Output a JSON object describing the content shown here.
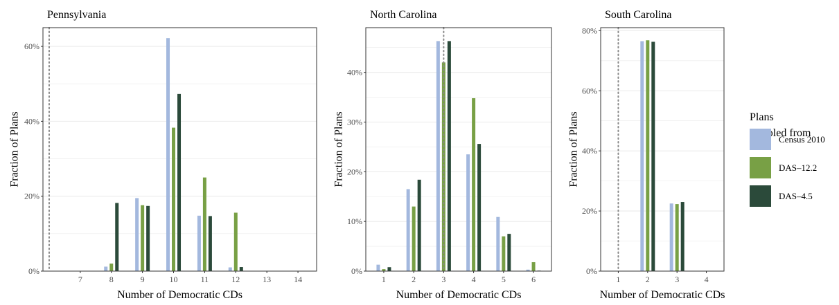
{
  "chart_data": [
    {
      "type": "bar",
      "title": "Pennsylvania",
      "xlabel": "Number of Democratic CDs",
      "ylabel": "Fraction of Plans",
      "categories": [
        "7",
        "8",
        "9",
        "10",
        "11",
        "12",
        "13",
        "14"
      ],
      "xlim": [
        5.8,
        14.6
      ],
      "ylim": [
        0,
        0.65
      ],
      "yticks": [
        0,
        0.2,
        0.4,
        0.6
      ],
      "ytick_labels": [
        "0%",
        "20%",
        "40%",
        "60%"
      ],
      "reference_line": 6,
      "series": [
        {
          "name": "Census 2010",
          "values": [
            0,
            0.012,
            0.195,
            0.622,
            0.148,
            0.01,
            0,
            0
          ]
        },
        {
          "name": "DAS–12.2",
          "values": [
            0,
            0.02,
            0.176,
            0.383,
            0.25,
            0.156,
            0,
            0
          ]
        },
        {
          "name": "DAS–4.5",
          "values": [
            0,
            0.182,
            0.174,
            0.473,
            0.147,
            0.011,
            0,
            0
          ]
        }
      ]
    },
    {
      "type": "bar",
      "title": "North Carolina",
      "xlabel": "Number of Democratic CDs",
      "ylabel": "Fraction of Plans",
      "categories": [
        "1",
        "2",
        "3",
        "4",
        "5",
        "6"
      ],
      "xlim": [
        0.4,
        6.6
      ],
      "ylim": [
        0,
        0.49
      ],
      "yticks": [
        0,
        0.1,
        0.2,
        0.3,
        0.4
      ],
      "ytick_labels": [
        "0%",
        "10%",
        "20%",
        "30%",
        "40%"
      ],
      "reference_line": 3,
      "series": [
        {
          "name": "Census 2010",
          "values": [
            0.013,
            0.165,
            0.463,
            0.235,
            0.109,
            0.003
          ]
        },
        {
          "name": "DAS–12.2",
          "values": [
            0.004,
            0.13,
            0.42,
            0.348,
            0.07,
            0.018
          ]
        },
        {
          "name": "DAS–4.5",
          "values": [
            0.008,
            0.184,
            0.463,
            0.256,
            0.075,
            0.001
          ]
        }
      ]
    },
    {
      "type": "bar",
      "title": "South Carolina",
      "xlabel": "Number of Democratic CDs",
      "ylabel": "Fraction of Plans",
      "categories": [
        "1",
        "2",
        "3",
        "4"
      ],
      "xlim": [
        0.4,
        4.6
      ],
      "ylim": [
        0,
        0.81
      ],
      "yticks": [
        0,
        0.2,
        0.4,
        0.6,
        0.8
      ],
      "ytick_labels": [
        "0%",
        "20%",
        "40%",
        "60%",
        "80%"
      ],
      "reference_line": 1,
      "series": [
        {
          "name": "Census 2010",
          "values": [
            0,
            0.765,
            0.225,
            0
          ]
        },
        {
          "name": "DAS–12.2",
          "values": [
            0,
            0.768,
            0.223,
            0
          ]
        },
        {
          "name": "DAS–4.5",
          "values": [
            0,
            0.763,
            0.23,
            0
          ]
        }
      ]
    }
  ],
  "legend": {
    "title_lines": [
      "Plans",
      "sampled from"
    ],
    "placement": "right",
    "items": [
      {
        "label": "Census 2010",
        "color": "#a3b8de"
      },
      {
        "label": "DAS–12.2",
        "color": "#78a045"
      },
      {
        "label": "DAS–4.5",
        "color": "#2b4a3a"
      }
    ]
  },
  "colors": {
    "gridline": "#ebebeb",
    "panel_border": "#333333",
    "reference_line": "#888888"
  }
}
